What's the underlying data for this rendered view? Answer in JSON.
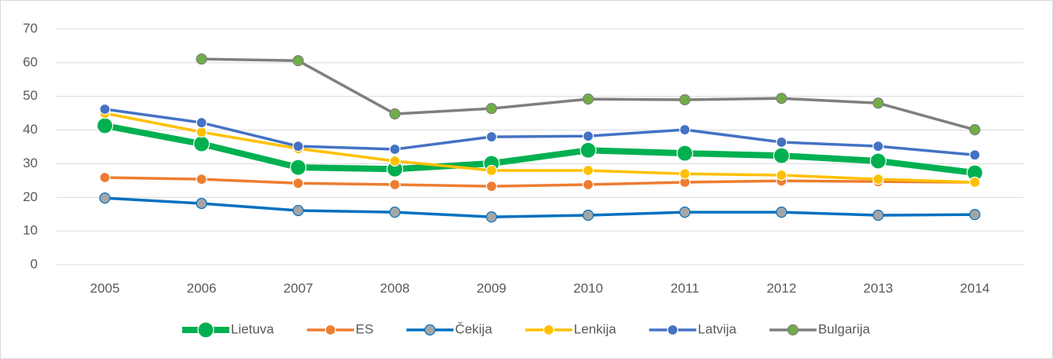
{
  "chart_data": {
    "type": "line",
    "categories": [
      "2005",
      "2006",
      "2007",
      "2008",
      "2009",
      "2010",
      "2011",
      "2012",
      "2013",
      "2014"
    ],
    "series": [
      {
        "name": "Lietuva",
        "color": "#00b050",
        "marker_color": "#00b050",
        "values": [
          41.3,
          35.9,
          28.9,
          28.4,
          30.1,
          34.0,
          33.1,
          32.4,
          30.8,
          27.3
        ]
      },
      {
        "name": "ES",
        "color": "#ed7d31",
        "marker_color": "#ed7d31",
        "values": [
          25.9,
          25.4,
          24.2,
          23.8,
          23.3,
          23.8,
          24.5,
          24.9,
          24.7,
          24.5
        ]
      },
      {
        "name": "Čekija",
        "color": "#0070c0",
        "marker_color": "#a5a5a5",
        "values": [
          19.8,
          18.2,
          16.1,
          15.6,
          14.2,
          14.7,
          15.6,
          15.6,
          14.7,
          14.9
        ]
      },
      {
        "name": "Lenkija",
        "color": "#ffc000",
        "marker_color": "#ffc000",
        "values": [
          45.0,
          39.4,
          34.5,
          30.8,
          28.0,
          28.0,
          27.0,
          26.6,
          25.4,
          24.5
        ]
      },
      {
        "name": "Latvija",
        "color": "#4472c4",
        "marker_color": "#4472c4",
        "values": [
          46.2,
          42.2,
          35.2,
          34.3,
          38.0,
          38.2,
          40.1,
          36.4,
          35.2,
          32.6
        ]
      },
      {
        "name": "Bulgarija",
        "color": "#7f7f7f",
        "marker_color": "#70ad47",
        "values": [
          null,
          61.1,
          60.6,
          44.8,
          46.4,
          49.2,
          49.0,
          49.4,
          48.0,
          40.1
        ]
      }
    ],
    "ylim": [
      0,
      70
    ],
    "yticks": [
      0,
      10,
      20,
      30,
      40,
      50,
      60,
      70
    ],
    "grid": true,
    "legend": "bottom"
  }
}
